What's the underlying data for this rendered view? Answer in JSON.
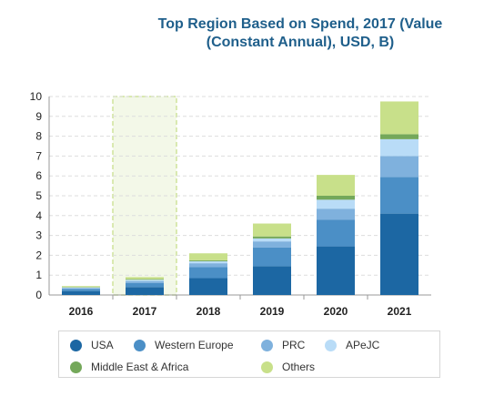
{
  "chart_data": {
    "type": "bar",
    "stacked": true,
    "title_line1": "Top Region Based on Spend, 2017 (Value",
    "title_line2": "(Constant Annual), USD, B)",
    "xlabel": "",
    "ylabel": "",
    "categories": [
      "2016",
      "2017",
      "2018",
      "2019",
      "2020",
      "2021"
    ],
    "highlight_category": "2017",
    "ylim": [
      0,
      10
    ],
    "yticks": [
      "0",
      "1",
      "2",
      "3",
      "4",
      "5",
      "6",
      "7",
      "8",
      "9",
      "10"
    ],
    "grid": true,
    "legend_position": "bottom",
    "series": [
      {
        "name": "USA",
        "color": "#1c67a3",
        "values": [
          0.2,
          0.4,
          0.85,
          1.45,
          2.45,
          4.1
        ]
      },
      {
        "name": "Western Europe",
        "color": "#4b8fc6",
        "values": [
          0.1,
          0.2,
          0.55,
          0.95,
          1.35,
          1.85
        ]
      },
      {
        "name": "PRC",
        "color": "#7fb1dd",
        "values": [
          0.05,
          0.1,
          0.2,
          0.3,
          0.55,
          1.05
        ]
      },
      {
        "name": "APeJC",
        "color": "#b9dcf7",
        "values": [
          0.03,
          0.07,
          0.1,
          0.15,
          0.45,
          0.85
        ]
      },
      {
        "name": "Middle East & Africa",
        "color": "#74a85a",
        "values": [
          0.02,
          0.03,
          0.05,
          0.1,
          0.2,
          0.25
        ]
      },
      {
        "name": "Others",
        "color": "#c8e08a",
        "values": [
          0.05,
          0.1,
          0.35,
          0.65,
          1.05,
          1.65
        ]
      }
    ]
  }
}
